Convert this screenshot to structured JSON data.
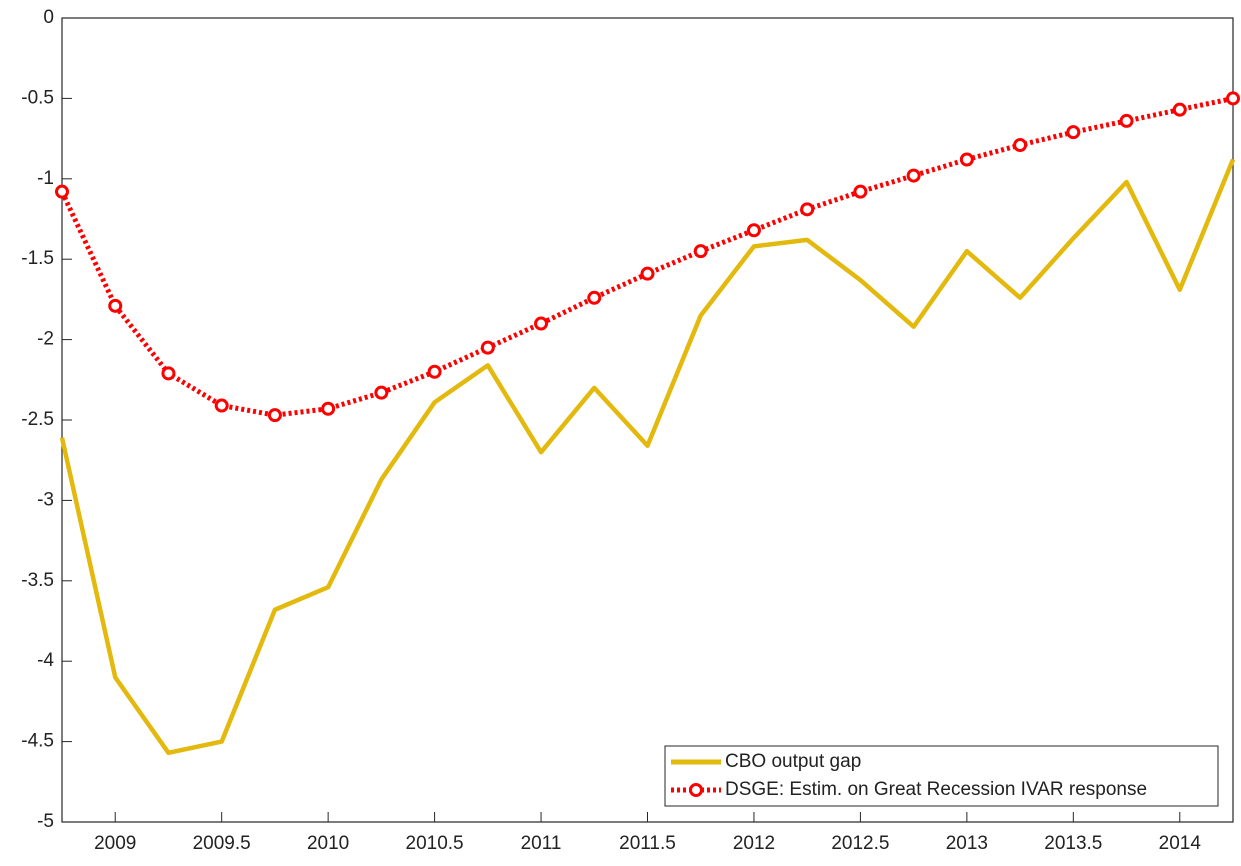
{
  "chart_data": {
    "type": "line",
    "x": [
      2008.75,
      2009,
      2009.25,
      2009.5,
      2009.75,
      2010,
      2010.25,
      2010.5,
      2010.75,
      2011,
      2011.25,
      2011.5,
      2011.75,
      2012,
      2012.25,
      2012.5,
      2012.75,
      2013,
      2013.25,
      2013.5,
      2013.75,
      2014,
      2014.25
    ],
    "series": [
      {
        "name": "CBO output gap",
        "color": "#e3b90e",
        "style": "solid",
        "values": [
          -2.61,
          -4.1,
          -4.57,
          -4.5,
          -3.68,
          -3.54,
          -2.87,
          -2.39,
          -2.16,
          -2.7,
          -2.3,
          -2.66,
          -1.85,
          -1.42,
          -1.38,
          -1.63,
          -1.92,
          -1.45,
          -1.74,
          -1.37,
          -1.02,
          -1.69,
          -0.88
        ]
      },
      {
        "name": "DSGE: Estim. on Great Recession IVAR response",
        "color": "#ff0000",
        "style": "dotted",
        "marker": "circle",
        "values": [
          -1.08,
          -1.79,
          -2.21,
          -2.41,
          -2.47,
          -2.43,
          -2.33,
          -2.2,
          -2.05,
          -1.9,
          -1.74,
          -1.59,
          -1.45,
          -1.32,
          -1.19,
          -1.08,
          -0.98,
          -0.88,
          -0.79,
          -0.71,
          -0.64,
          -0.57,
          -0.5
        ]
      }
    ],
    "xlim": [
      2008.75,
      2014.25
    ],
    "xticks": [
      2009,
      2009.5,
      2010,
      2010.5,
      2011,
      2011.5,
      2012,
      2012.5,
      2013,
      2013.5,
      2014
    ],
    "ylim": [
      -5,
      0
    ],
    "yticks": [
      -5,
      -4.5,
      -4,
      -3.5,
      -3,
      -2.5,
      -2,
      -1.5,
      -1,
      -0.5,
      0
    ],
    "grid": false,
    "legend": "southeast"
  }
}
